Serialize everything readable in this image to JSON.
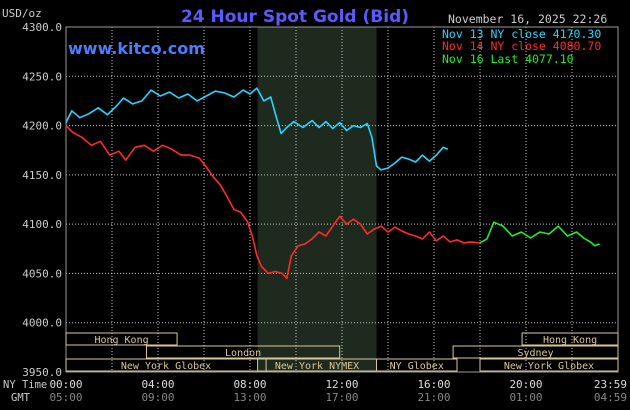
{
  "colors": {
    "background": "#000000",
    "plot_background": "#000000",
    "nymex_shade": "#1e2a1e",
    "grid": "#c8c8c8",
    "axis_text": "#cccccc",
    "title": "#5a5aff",
    "site": "#4d7dff",
    "session_bar": "#d8c79a",
    "session_text": "#d8c79a"
  },
  "header": {
    "unit": "USD/oz",
    "title": "24 Hour Spot Gold (Bid)",
    "timestamp": "November 16, 2025 22:26",
    "site": "www.kitco.com"
  },
  "legend": [
    {
      "label": "Nov 13 NY close 4170.30",
      "color": "#29d4ff"
    },
    {
      "label": "Nov 14 NY close 4080.70",
      "color": "#ff2a2a"
    },
    {
      "label": "Nov 16 Last 4077.10",
      "color": "#22ee22"
    }
  ],
  "axis_labels": {
    "ny_time": "NY Time",
    "gmt": "GMT"
  },
  "sessions": [
    {
      "name": "Hong Kong",
      "start": 0.0,
      "end": 4.83
    },
    {
      "name": "London",
      "start": 3.5,
      "end": 11.9
    },
    {
      "name": "New York Globex",
      "start": 0.0,
      "end": 8.7
    },
    {
      "name": "New York NYMEX",
      "start": 8.33,
      "end": 13.5
    },
    {
      "name": "NY Globex",
      "start": 13.5,
      "end": 17.0
    },
    {
      "name": "Hong Kong",
      "start": 19.83,
      "end": 24.0
    },
    {
      "name": "Sydney",
      "start": 16.83,
      "end": 24.0
    },
    {
      "name": "New York Globex",
      "start": 18.0,
      "end": 24.0
    }
  ],
  "chart_data": {
    "type": "line",
    "title": "24 Hour Spot Gold (Bid)",
    "ylabel": "USD/oz",
    "xlim": [
      0,
      24
    ],
    "ylim": [
      3950,
      4300
    ],
    "yticks": [
      "4300.0",
      "4250.0",
      "4200.0",
      "4150.0",
      "4100.0",
      "4050.0",
      "4000.0",
      "3950.0"
    ],
    "ytick_values": [
      4300,
      4250,
      4200,
      4150,
      4100,
      4050,
      4000,
      3950
    ],
    "xticks_ny": [
      "00:00",
      "04:00",
      "08:00",
      "12:00",
      "16:00",
      "20:00",
      "23:59"
    ],
    "xticks_gmt": [
      "05:00",
      "09:00",
      "13:00",
      "17:00",
      "21:00",
      "01:00",
      "04:59"
    ],
    "xtick_values": [
      0,
      4,
      8,
      12,
      16,
      20,
      24
    ],
    "nymex_hours": [
      8.33,
      13.5
    ],
    "grid": true,
    "legend_position": "top-right",
    "series": [
      {
        "name": "Nov 13 NY close 4170.30",
        "color": "#29d4ff",
        "x": [
          0,
          0.25,
          0.6,
          1.0,
          1.4,
          1.8,
          2.2,
          2.5,
          2.9,
          3.3,
          3.7,
          4.1,
          4.5,
          4.9,
          5.3,
          5.7,
          6.1,
          6.5,
          6.9,
          7.3,
          7.7,
          8.0,
          8.3,
          8.6,
          8.9,
          9.1,
          9.35,
          9.6,
          9.9,
          10.3,
          10.7,
          11.0,
          11.3,
          11.6,
          11.9,
          12.2,
          12.5,
          12.8,
          13.1,
          13.3,
          13.5,
          13.7,
          14.0,
          14.3,
          14.6,
          14.9,
          15.2,
          15.5,
          15.8,
          16.1,
          16.4,
          16.6
        ],
        "values": [
          4203,
          4215,
          4208,
          4212,
          4218,
          4211,
          4220,
          4228,
          4222,
          4225,
          4236,
          4230,
          4234,
          4228,
          4232,
          4225,
          4230,
          4235,
          4233,
          4229,
          4236,
          4232,
          4238,
          4225,
          4229,
          4212,
          4192,
          4198,
          4204,
          4198,
          4205,
          4198,
          4204,
          4197,
          4203,
          4195,
          4200,
          4198,
          4202,
          4188,
          4159,
          4155,
          4157,
          4162,
          4168,
          4166,
          4163,
          4170,
          4164,
          4170,
          4178,
          4176
        ]
      },
      {
        "name": "Nov 14 NY close 4080.70",
        "color": "#ff2a2a",
        "x": [
          0,
          0.3,
          0.7,
          1.1,
          1.5,
          1.9,
          2.3,
          2.6,
          3.0,
          3.4,
          3.8,
          4.2,
          4.6,
          5.0,
          5.4,
          5.8,
          6.1,
          6.4,
          6.7,
          7.0,
          7.3,
          7.6,
          7.9,
          8.1,
          8.3,
          8.5,
          8.8,
          9.1,
          9.4,
          9.6,
          9.8,
          10.1,
          10.4,
          10.7,
          11.0,
          11.3,
          11.6,
          11.9,
          12.2,
          12.5,
          12.8,
          13.1,
          13.4,
          13.7,
          14.0,
          14.3,
          14.6,
          14.9,
          15.2,
          15.5,
          15.8,
          16.1,
          16.4,
          16.7,
          17.0,
          17.3,
          17.6,
          18.0
        ],
        "values": [
          4200,
          4193,
          4188,
          4180,
          4184,
          4170,
          4174,
          4165,
          4178,
          4180,
          4174,
          4180,
          4176,
          4170,
          4170,
          4167,
          4158,
          4148,
          4140,
          4128,
          4115,
          4112,
          4102,
          4088,
          4068,
          4057,
          4050,
          4052,
          4050,
          4045,
          4068,
          4078,
          4080,
          4085,
          4092,
          4088,
          4098,
          4108,
          4100,
          4105,
          4100,
          4090,
          4095,
          4098,
          4092,
          4097,
          4093,
          4090,
          4088,
          4085,
          4092,
          4083,
          4088,
          4082,
          4084,
          4081,
          4082,
          4081
        ]
      },
      {
        "name": "Nov 16 Last 4077.10",
        "color": "#22ee22",
        "x": [
          18.0,
          18.3,
          18.6,
          19.0,
          19.4,
          19.8,
          20.2,
          20.6,
          21.0,
          21.4,
          21.8,
          22.2,
          22.5,
          22.8,
          23.0,
          23.2
        ],
        "values": [
          4081,
          4085,
          4102,
          4098,
          4088,
          4092,
          4086,
          4092,
          4090,
          4098,
          4088,
          4092,
          4086,
          4082,
          4078,
          4080
        ]
      }
    ]
  }
}
